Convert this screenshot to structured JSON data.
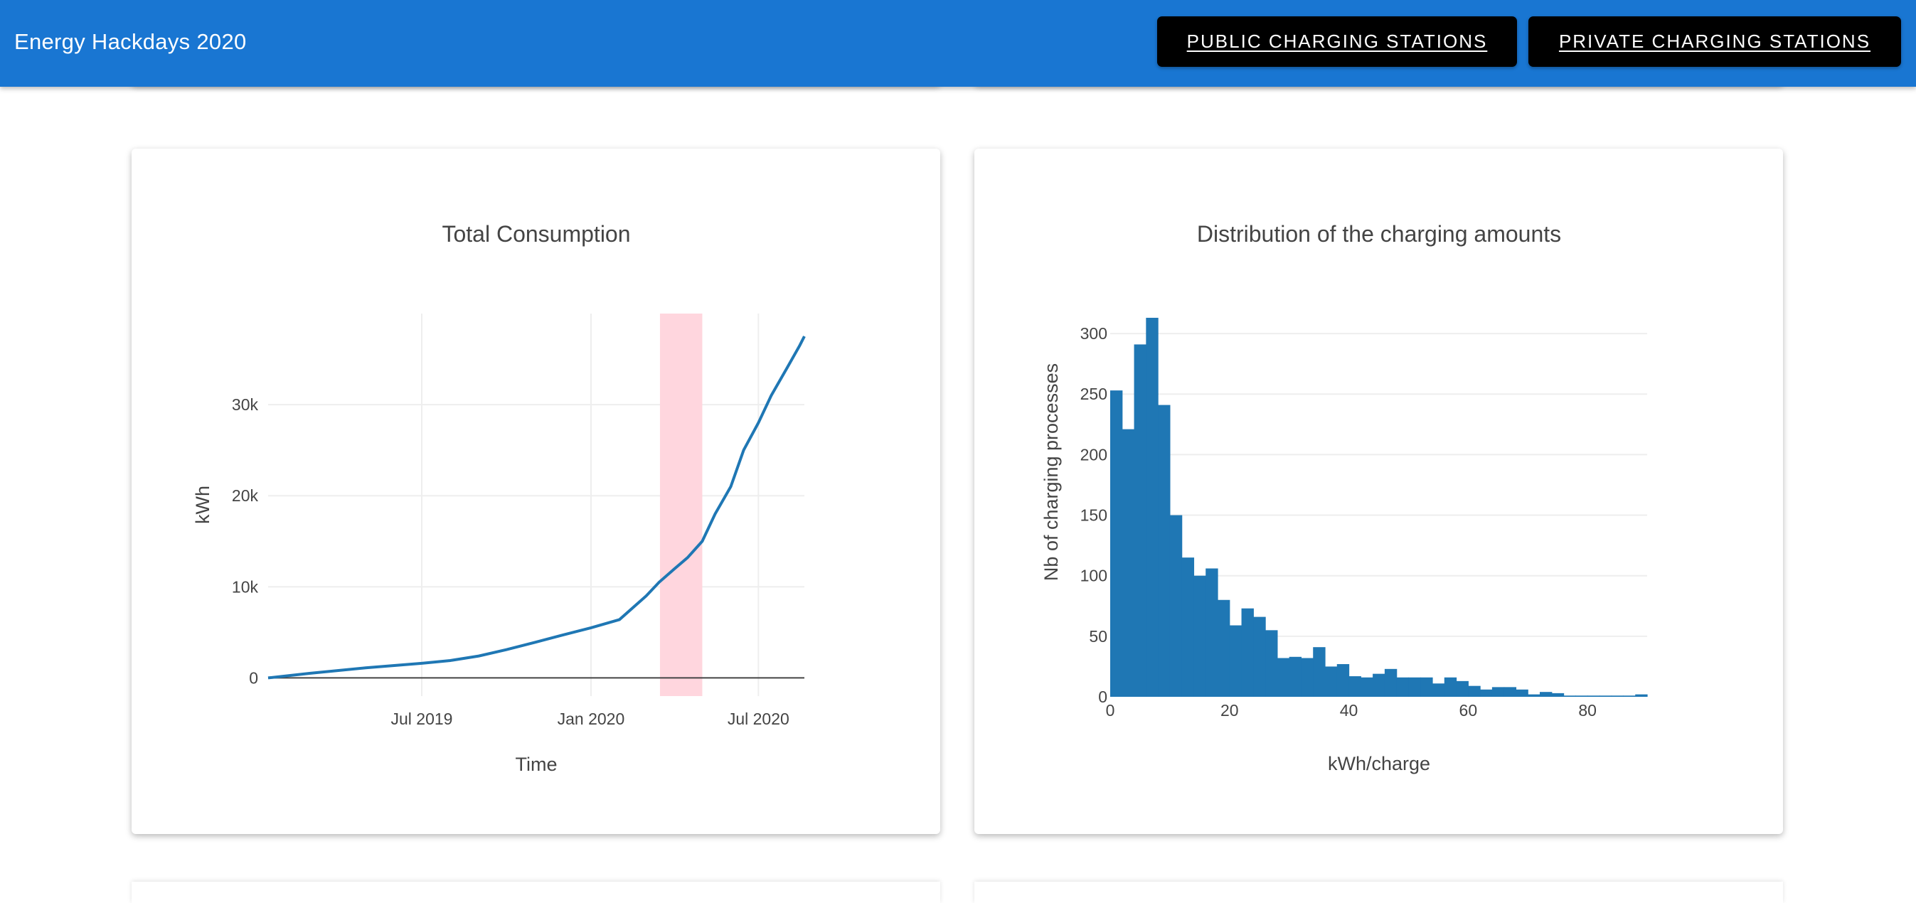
{
  "app": {
    "title": "Energy Hackdays 2020",
    "nav": {
      "public_label": "PUBLIC CHARGING STATIONS",
      "private_label": "PRIVATE CHARGING STATIONS"
    },
    "bar_color": "#1976d2"
  },
  "charts": {
    "consumption": {
      "title": "Total Consumption",
      "xlabel": "Time",
      "ylabel": "kWh"
    },
    "distribution": {
      "title": "Distribution of the charging amounts",
      "xlabel": "kWh/charge",
      "ylabel": "Nb of charging processes"
    }
  },
  "chart_data": [
    {
      "type": "line",
      "title": "Total Consumption",
      "xlabel": "Time",
      "ylabel": "kWh",
      "x_ticks": [
        "Jul 2019",
        "Jan 2020",
        "Jul 2020"
      ],
      "y_ticks": [
        "0",
        "10k",
        "20k",
        "30k"
      ],
      "xlim": [
        "2019-01-15",
        "2020-08-20"
      ],
      "ylim": [
        -2000,
        40000
      ],
      "grid": true,
      "line_color": "#1f77b4",
      "highlight": {
        "x_range": [
          "2020-03-16",
          "2020-05-01"
        ],
        "color": "#ffd6de"
      },
      "x": [
        "2019-01-15",
        "2019-03-01",
        "2019-05-01",
        "2019-07-01",
        "2019-08-01",
        "2019-09-01",
        "2019-10-01",
        "2019-11-01",
        "2019-12-01",
        "2020-01-01",
        "2020-02-01",
        "2020-03-01",
        "2020-03-15",
        "2020-04-01",
        "2020-04-15",
        "2020-05-01",
        "2020-05-15",
        "2020-06-01",
        "2020-06-15",
        "2020-07-01",
        "2020-07-15",
        "2020-08-01",
        "2020-08-15",
        "2020-08-20"
      ],
      "y": [
        0,
        500,
        1100,
        1600,
        1900,
        2400,
        3100,
        3900,
        4700,
        5500,
        6400,
        9000,
        10500,
        12000,
        13200,
        15000,
        18000,
        21000,
        25000,
        28000,
        31000,
        34000,
        36500,
        37500
      ]
    },
    {
      "type": "bar",
      "title": "Distribution of the charging amounts",
      "xlabel": "kWh/charge",
      "ylabel": "Nb of charging processes",
      "bin_width": 2,
      "bin_start": 0,
      "x_ticks": [
        "0",
        "20",
        "40",
        "60",
        "80"
      ],
      "y_ticks": [
        "0",
        "50",
        "100",
        "150",
        "200",
        "250",
        "300"
      ],
      "xlim": [
        0,
        90
      ],
      "ylim": [
        0,
        330
      ],
      "grid": true,
      "bar_color": "#1f77b4",
      "values": [
        253,
        221,
        291,
        313,
        241,
        150,
        115,
        100,
        106,
        80,
        59,
        73,
        66,
        55,
        32,
        33,
        32,
        41,
        25,
        27,
        17,
        16,
        19,
        23,
        16,
        16,
        16,
        11,
        16,
        13,
        9,
        6,
        8,
        8,
        6,
        2,
        4,
        3,
        1,
        1,
        1,
        1,
        1,
        1,
        2
      ]
    }
  ]
}
